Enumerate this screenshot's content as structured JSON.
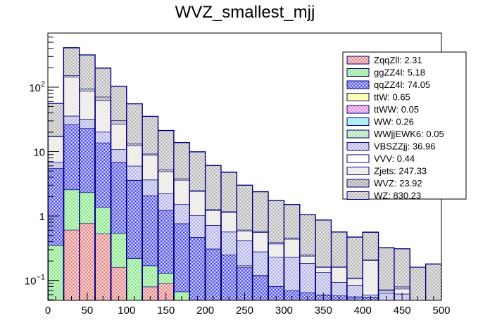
{
  "chart_data": {
    "type": "bar",
    "subtype": "stacked-histogram",
    "title": "WVZ_smallest_mjj",
    "xlabel": "",
    "ylabel": "",
    "xlim": [
      0,
      500
    ],
    "ylim": [
      0.049,
      693
    ],
    "yscale": "log",
    "bin_width": 20,
    "bin_edges": [
      0,
      20,
      40,
      60,
      80,
      100,
      120,
      140,
      160,
      180,
      200,
      220,
      240,
      260,
      280,
      300,
      320,
      340,
      360,
      380,
      400,
      420,
      440,
      460,
      480,
      500
    ],
    "x_tick_labels": [
      "0",
      "50",
      "100",
      "150",
      "200",
      "250",
      "300",
      "350",
      "400",
      "450",
      "500"
    ],
    "x_tick_values": [
      0,
      50,
      100,
      150,
      200,
      250,
      300,
      350,
      400,
      450,
      500
    ],
    "y_tick_labels": [
      {
        "value": 0.1,
        "base": "10",
        "exp": "−1"
      },
      {
        "value": 1,
        "base": "1",
        "exp": ""
      },
      {
        "value": 10,
        "base": "10",
        "exp": ""
      },
      {
        "value": 100,
        "base": "10",
        "exp": "2"
      }
    ],
    "grid": false,
    "legend_position": "top-right",
    "series": [
      {
        "name": "ZqqZll",
        "legend": "ZqqZll: 2.31",
        "color": "#e06060",
        "values": [
          0,
          0.61,
          0.77,
          0.53,
          0.16,
          0,
          0.08,
          0.09,
          0,
          0,
          0,
          0,
          0,
          0,
          0,
          0,
          0,
          0,
          0,
          0,
          0,
          0,
          0,
          0,
          0
        ]
      },
      {
        "name": "ggZZ4l",
        "legend": "ggZZ4l: 5.18",
        "color": "#60e060",
        "values": [
          0.35,
          1.97,
          1.56,
          0.84,
          0.38,
          0.22,
          0.09,
          0.04,
          0.067,
          0,
          0,
          0,
          0,
          0,
          0,
          0,
          0,
          0,
          0,
          0,
          0,
          0,
          0,
          0,
          0
        ]
      },
      {
        "name": "qqZZ4l",
        "legend": "qqZZ4l: 74.05",
        "color": "#2020e0",
        "values": [
          5.15,
          23.9,
          20.7,
          12.4,
          6.3,
          3.4,
          1.9,
          1.1,
          0.7,
          0.47,
          0.31,
          0.25,
          0.16,
          0.12,
          0.081,
          0.07,
          0.065,
          0.06,
          0.058,
          0.056,
          0.055,
          0,
          0,
          0,
          0
        ]
      },
      {
        "name": "ttW",
        "legend": "ttW: 0.65",
        "color": "#ffff66",
        "values": [
          0,
          0,
          0,
          0,
          0,
          0,
          0,
          0,
          0,
          0,
          0,
          0,
          0.01,
          0,
          0,
          0,
          0,
          0,
          0,
          0,
          0,
          0,
          0,
          0,
          0
        ]
      },
      {
        "name": "ttWW",
        "legend": "ttWW: 0.05",
        "color": "#e060e0",
        "values": [
          0,
          0,
          0,
          0,
          0,
          0,
          0,
          0,
          0,
          0,
          0,
          0,
          0,
          0,
          0,
          0,
          0,
          0,
          0,
          0,
          0,
          0,
          0,
          0,
          0
        ]
      },
      {
        "name": "WW",
        "legend": "WW: 0.26",
        "color": "#60e0e0",
        "values": [
          0,
          0,
          0,
          0,
          0,
          0,
          0,
          0,
          0,
          0,
          0,
          0,
          0,
          0,
          0,
          0,
          0,
          0,
          0,
          0,
          0,
          0,
          0,
          0,
          0
        ]
      },
      {
        "name": "WWjjEWK6",
        "legend": "WWjjEWK6: 0.05",
        "color": "#8ed88e",
        "values": [
          0,
          0,
          0,
          0,
          0,
          0,
          0,
          0,
          0,
          0,
          0,
          0,
          0,
          0,
          0,
          0,
          0,
          0,
          0,
          0,
          0,
          0,
          0,
          0,
          0
        ]
      },
      {
        "name": "VBSZZjj",
        "legend": "VBSZZjj: 36.96",
        "color": "#9a9ae0",
        "values": [
          1.4,
          9.5,
          9.0,
          6.5,
          4.0,
          2.4,
          1.6,
          1.0,
          0.76,
          0.55,
          0.41,
          0.32,
          0.25,
          0.16,
          0.15,
          0.16,
          0.12,
          0.073,
          0.036,
          0.029,
          0.005,
          0.064,
          0.062,
          0,
          0
        ]
      },
      {
        "name": "VVV",
        "legend": "VVV: 0.44",
        "color": "#ffffff",
        "values": [
          0,
          0,
          0,
          0,
          0,
          0,
          0,
          0,
          0,
          0,
          0,
          0,
          0,
          0,
          0,
          0,
          0,
          0,
          0,
          0,
          0,
          0,
          0,
          0,
          0
        ]
      },
      {
        "name": "Zjets",
        "legend": "Zjets: 247.33",
        "color": "#e2ddd8",
        "values": [
          10.3,
          109,
          56,
          42.7,
          16.2,
          6.5,
          5.2,
          2.7,
          2.1,
          1.4,
          0.5,
          0.57,
          0.17,
          0.28,
          0.14,
          0.21,
          0.055,
          0.027,
          0.066,
          0.022,
          0.145,
          0.005,
          0.012,
          0,
          0
        ]
      },
      {
        "name": "WVZ",
        "legend": "WVZ: 23.92",
        "color": "#8a8a8a",
        "values": [
          0.4,
          8,
          6.6,
          8,
          3.6,
          0.7,
          0.4,
          0.3,
          0.2,
          0.1,
          0.06,
          0.04,
          0.02,
          0.02,
          0.02,
          0.02,
          0.01,
          0.005,
          0.005,
          0.003,
          0.005,
          0.003,
          0.006,
          0,
          0
        ]
      },
      {
        "name": "WZ",
        "legend": "WZ: 830.23",
        "color": "#a0a0a0",
        "values": [
          38.4,
          257,
          223,
          127,
          73,
          42,
          26,
          16,
          10,
          7.4,
          4.8,
          3.6,
          2.4,
          1.8,
          1.35,
          1.05,
          0.8,
          0.7,
          0.4,
          0.36,
          0.35,
          0.25,
          0.23,
          0.16,
          0.18
        ]
      }
    ],
    "outline_color": "#000080"
  }
}
